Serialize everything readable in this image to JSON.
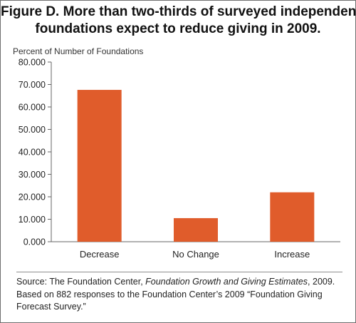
{
  "title": {
    "line1": "Figure D. More than two-thirds of surveyed independent",
    "line2": "foundations expect to reduce giving in 2009."
  },
  "colors": {
    "bar": "#E05C2B",
    "axis": "#666666"
  },
  "source": {
    "prefix": "Source: The Foundation Center, ",
    "publication": "Foundation Growth and Giving Estimates",
    "suffix": ", 2009.",
    "line2": "Based on 882 responses to the Foundation Center’s 2009 “Foundation Giving",
    "line3": "Forecast Survey.”"
  },
  "chart_data": {
    "type": "bar",
    "title": "",
    "ylabel": "Percent of Number of Foundations",
    "xlabel": "",
    "categories": [
      "Decrease",
      "No Change",
      "Increase"
    ],
    "values": [
      67.6,
      10.5,
      22.0
    ],
    "ylim": [
      0,
      80
    ],
    "yticks": [
      "0.000",
      "10.000",
      "20.000",
      "30.000",
      "40.000",
      "50.000",
      "60.000",
      "70.000",
      "80.000"
    ],
    "grid": false,
    "legend": "none"
  }
}
